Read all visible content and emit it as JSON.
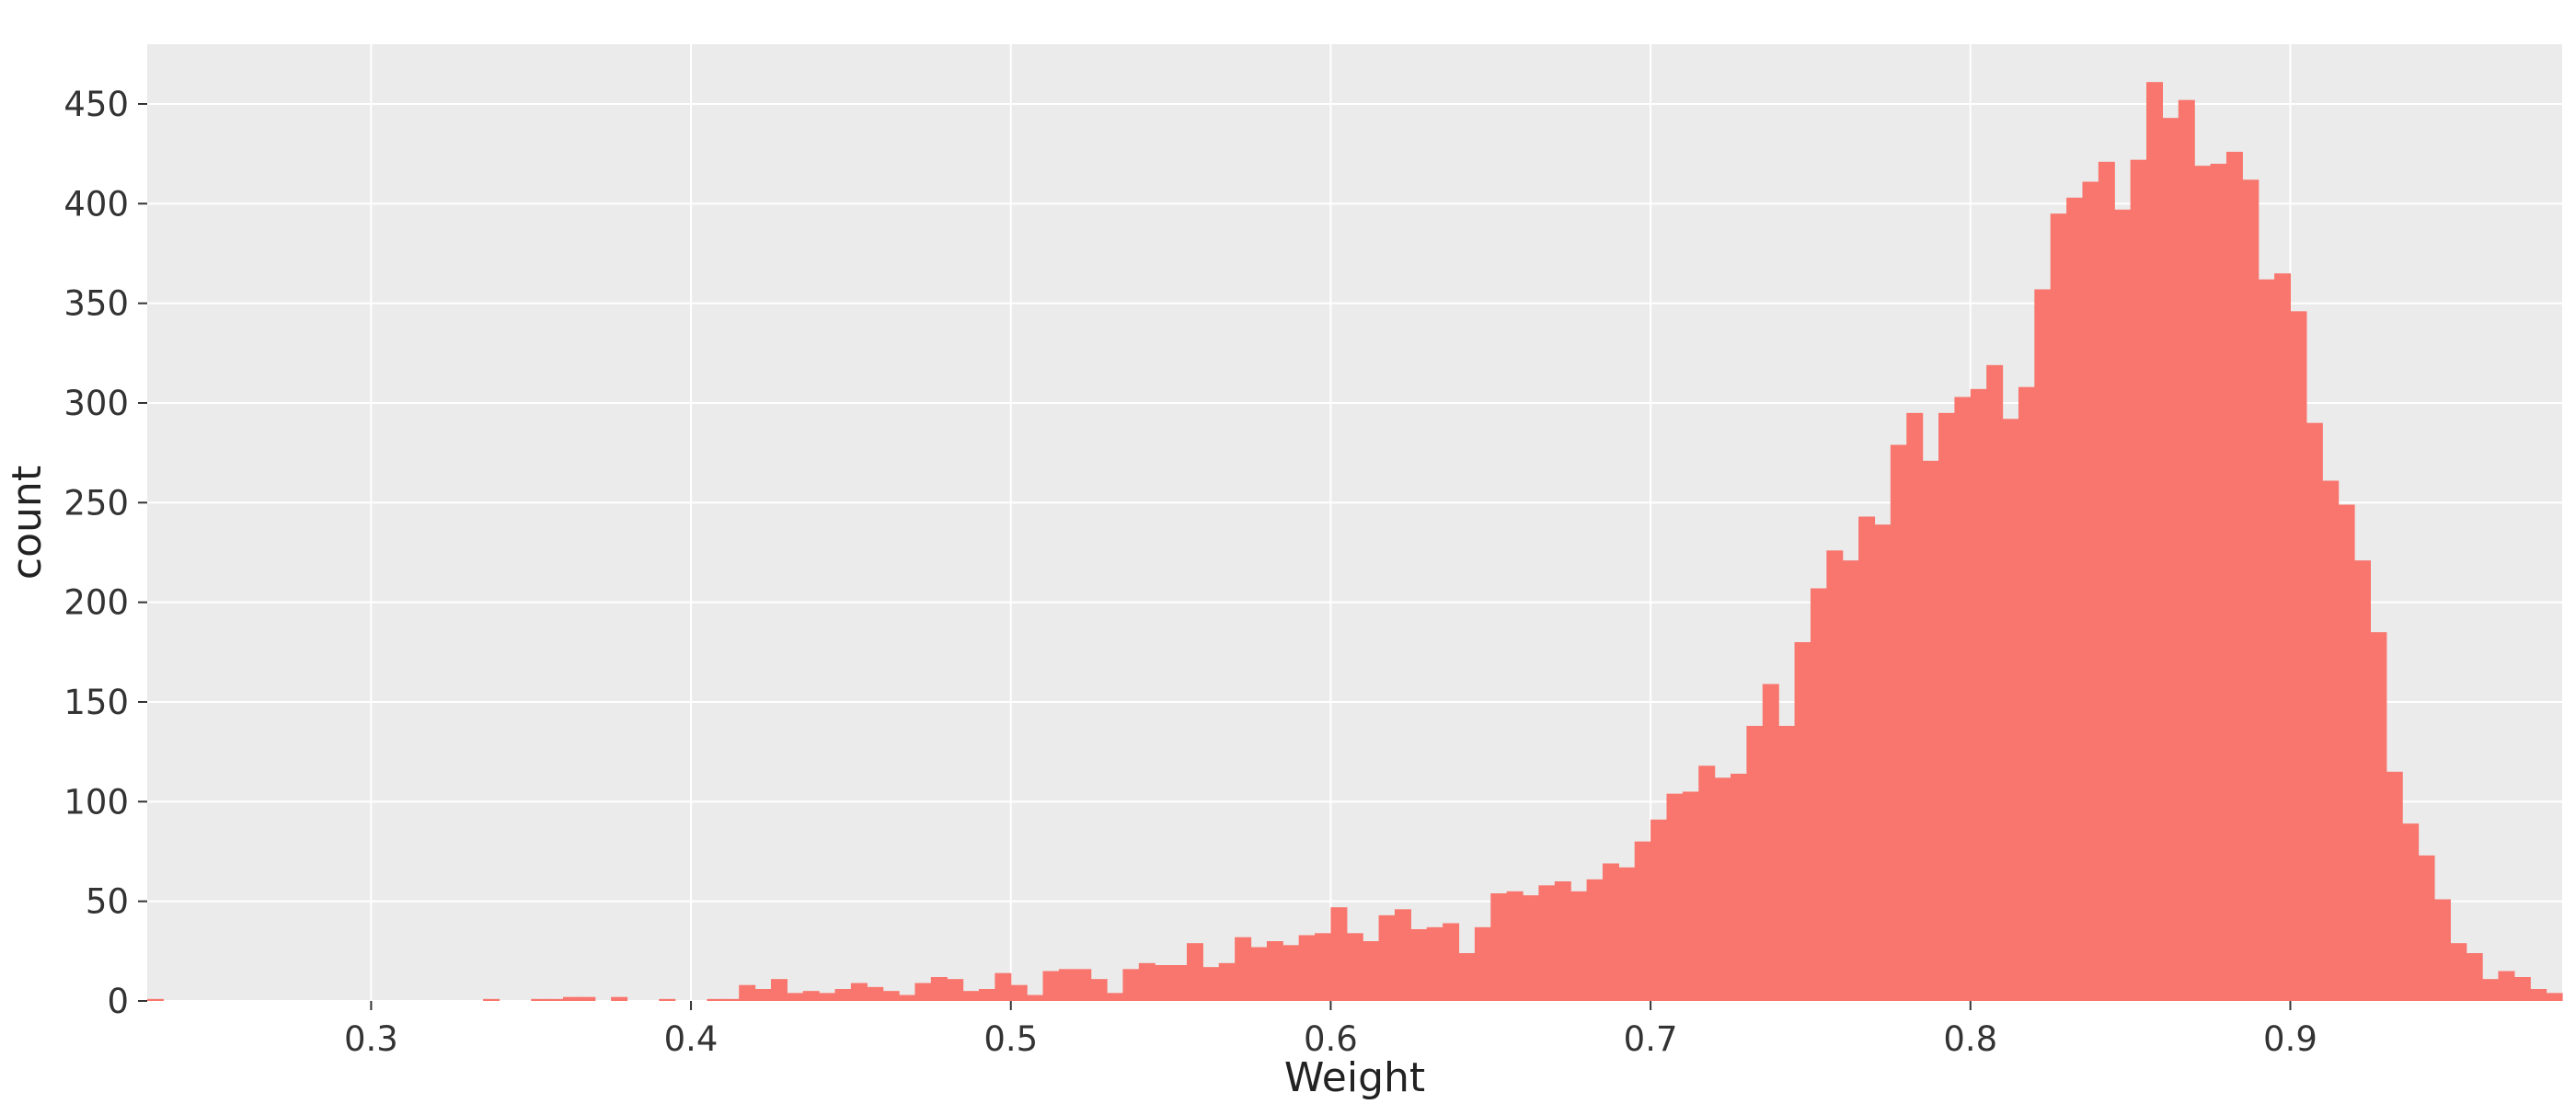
{
  "chart_data": {
    "type": "bar",
    "title": "",
    "xlabel": "Weight",
    "ylabel": "count",
    "xlim": [
      0.23,
      0.985
    ],
    "ylim": [
      0,
      480
    ],
    "grid": true,
    "legend": "none",
    "colors": {
      "bar": "#F8766D",
      "panel": "#EBEBEB",
      "grid": "#FFFFFF"
    },
    "bin_start": 0.23,
    "bin_width": 0.005,
    "values": [
      1,
      0,
      0,
      0,
      0,
      0,
      0,
      0,
      0,
      0,
      0,
      0,
      0,
      0,
      0,
      0,
      0,
      0,
      0,
      0,
      0,
      1,
      0,
      0,
      1,
      1,
      2,
      2,
      0,
      2,
      0,
      0,
      1,
      0,
      0,
      1,
      1,
      8,
      6,
      11,
      4,
      5,
      4,
      6,
      9,
      7,
      5,
      3,
      9,
      12,
      11,
      5,
      6,
      14,
      8,
      3,
      15,
      16,
      16,
      11,
      4,
      16,
      19,
      18,
      18,
      29,
      17,
      19,
      32,
      27,
      30,
      28,
      33,
      34,
      47,
      34,
      30,
      43,
      46,
      36,
      37,
      39,
      24,
      37,
      54,
      55,
      53,
      58,
      60,
      55,
      61,
      69,
      67,
      80,
      91,
      104,
      105,
      118,
      112,
      114,
      138,
      159,
      138,
      180,
      207,
      226,
      221,
      243,
      239,
      279,
      295,
      271,
      295,
      303,
      307,
      319,
      292,
      308,
      357,
      395,
      403,
      411,
      421,
      397,
      422,
      461,
      443,
      452,
      419,
      420,
      426,
      412,
      362,
      365,
      346,
      290,
      261,
      249,
      221,
      185,
      115,
      89,
      73,
      51,
      29,
      24,
      11,
      15,
      12,
      6,
      4,
      3
    ],
    "xticks": [
      0.3,
      0.4,
      0.5,
      0.6,
      0.7,
      0.8,
      0.9
    ],
    "xtick_labels": [
      "0.3",
      "0.4",
      "0.5",
      "0.6",
      "0.7",
      "0.8",
      "0.9"
    ],
    "yticks": [
      0,
      50,
      100,
      150,
      200,
      250,
      300,
      350,
      400,
      450
    ],
    "ytick_labels": [
      "0",
      "50",
      "100",
      "150",
      "200",
      "250",
      "300",
      "350",
      "400",
      "450"
    ]
  }
}
